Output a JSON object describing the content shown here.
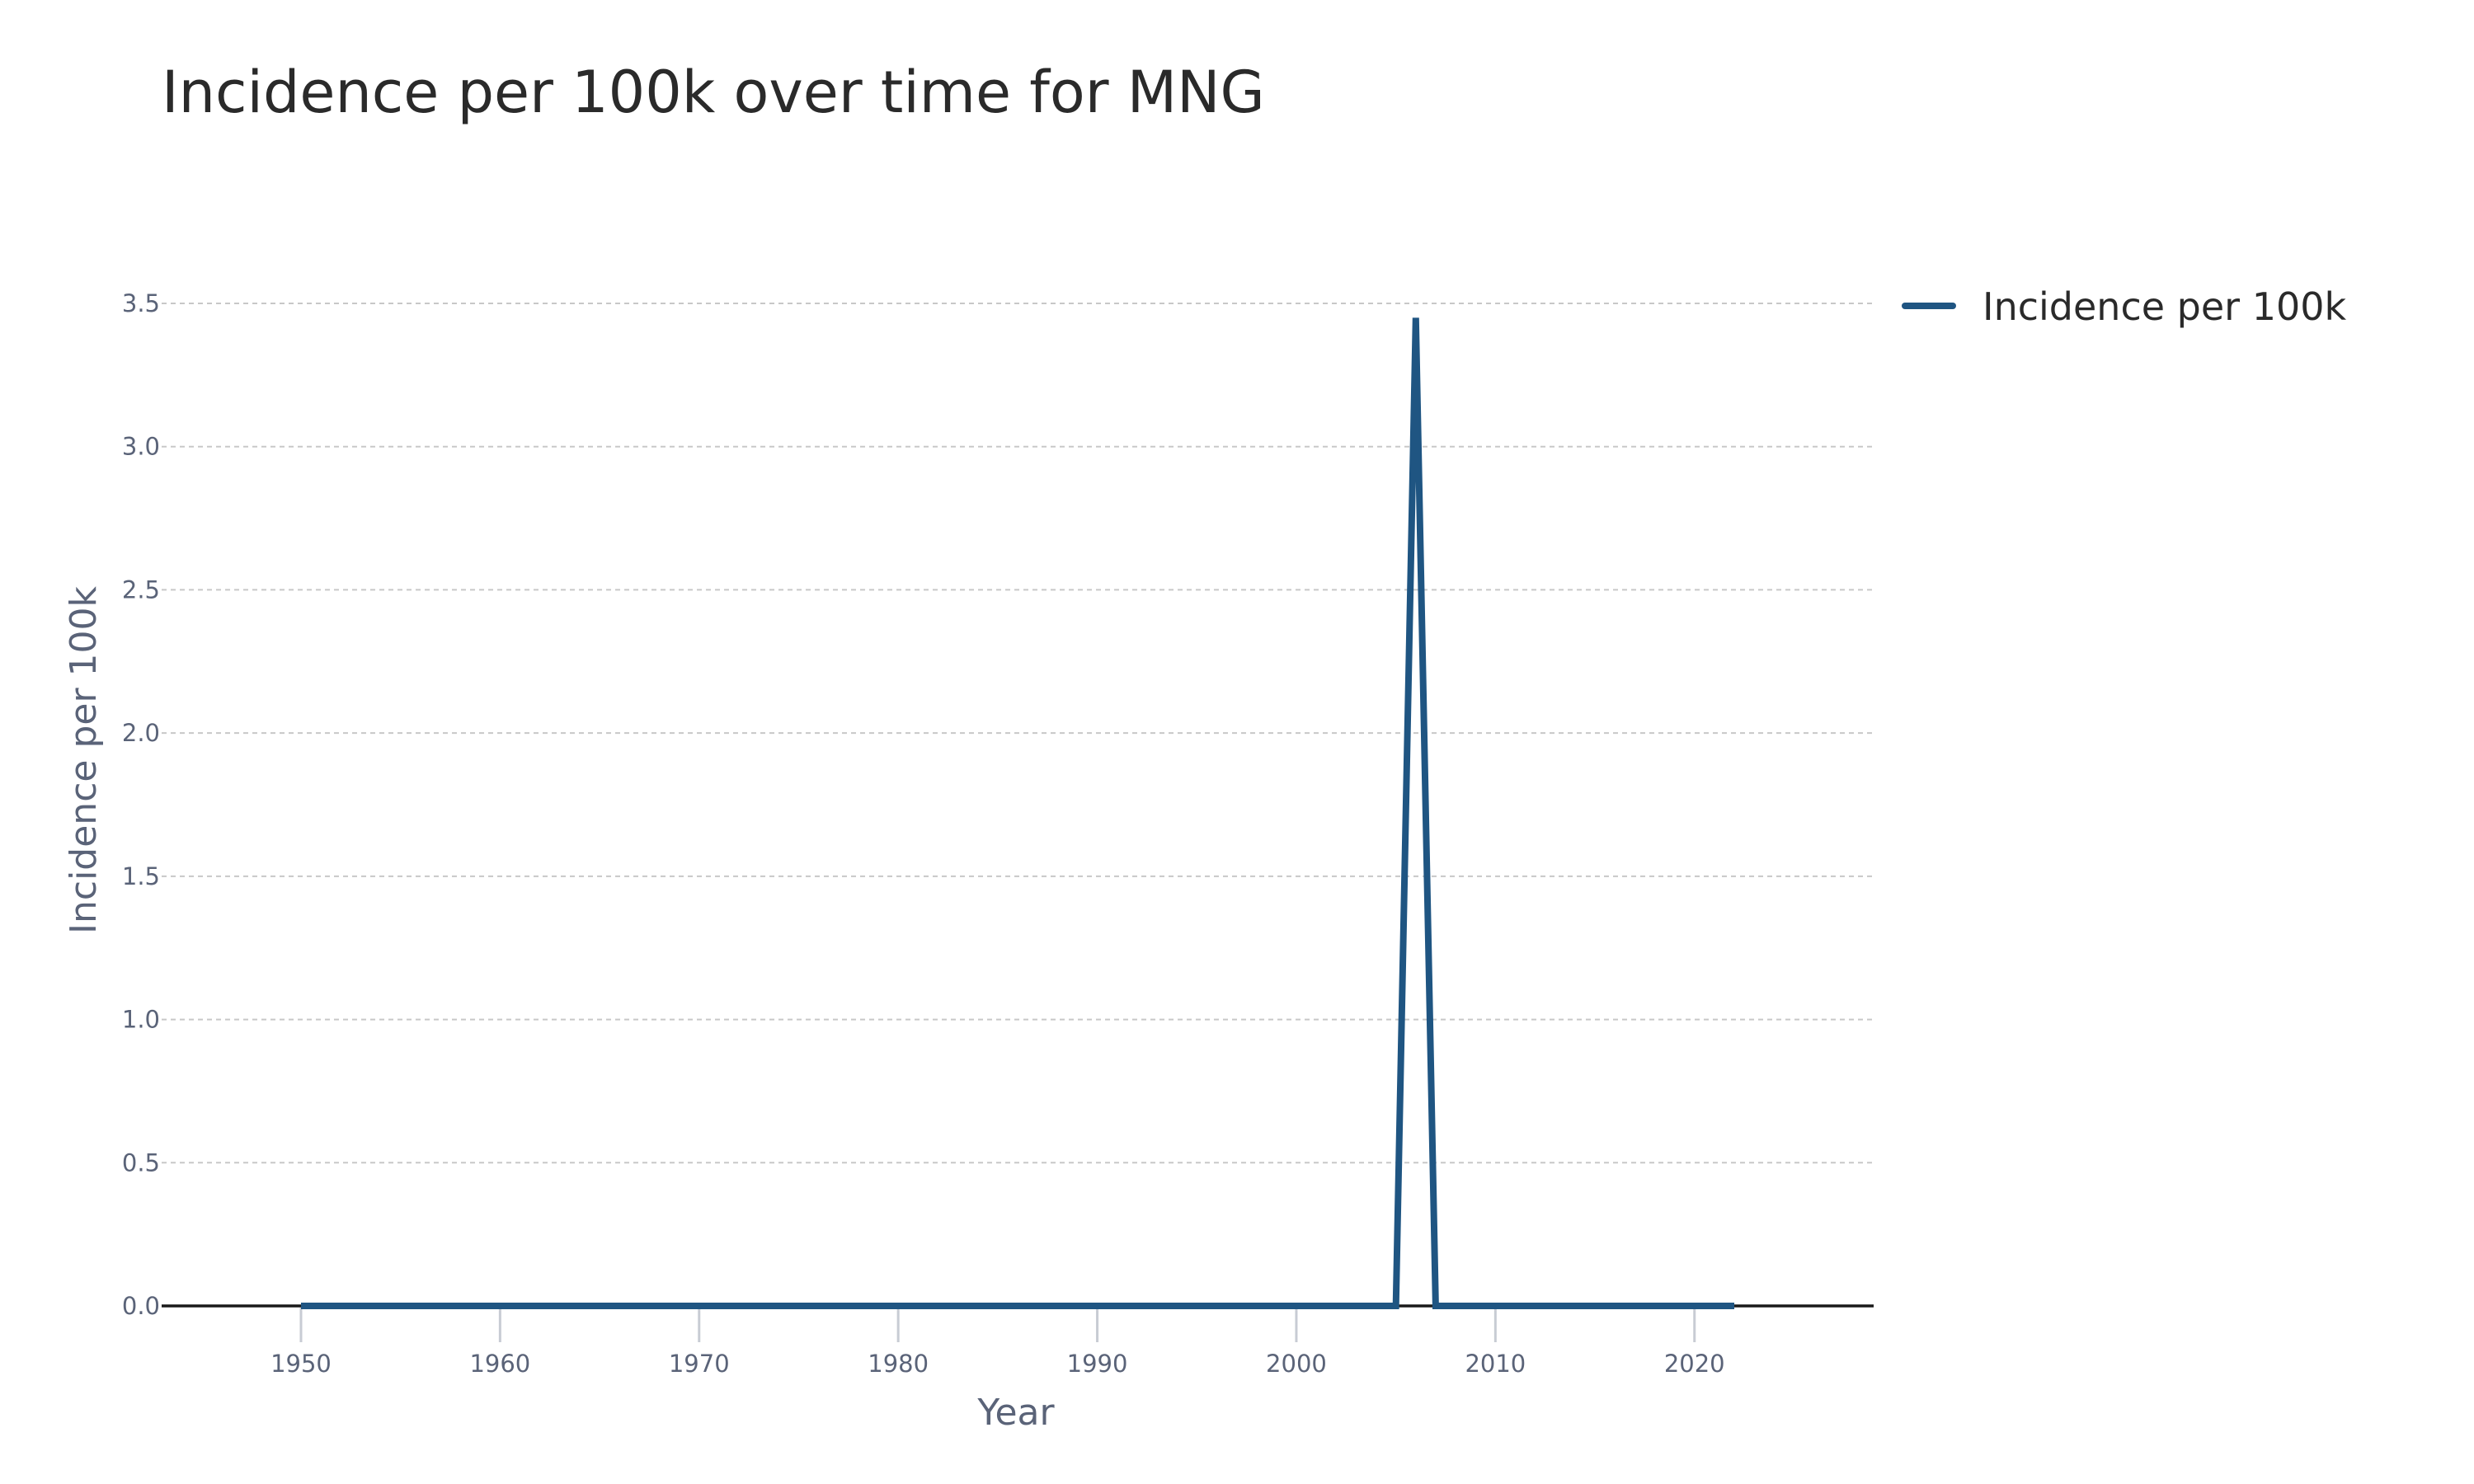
{
  "chart_data": {
    "type": "line",
    "title": "Incidence per 100k over time for MNG",
    "xlabel": "Year",
    "ylabel": "Incidence per 100k",
    "xlim": [
      1943,
      2029
    ],
    "ylim": [
      0,
      3.5
    ],
    "x_ticks": [
      1950,
      1960,
      1970,
      1980,
      1990,
      2000,
      2010,
      2020
    ],
    "y_ticks": [
      "0.0",
      "0.5",
      "1.0",
      "1.5",
      "2.0",
      "2.5",
      "3.0",
      "3.5"
    ],
    "grid": true,
    "legend_position": "top-right",
    "series": [
      {
        "name": "Incidence per 100k",
        "color": "#1f5582",
        "x": [
          1950,
          2005,
          2006,
          2007,
          2022
        ],
        "y": [
          0,
          0,
          3.45,
          0,
          0
        ]
      }
    ]
  }
}
